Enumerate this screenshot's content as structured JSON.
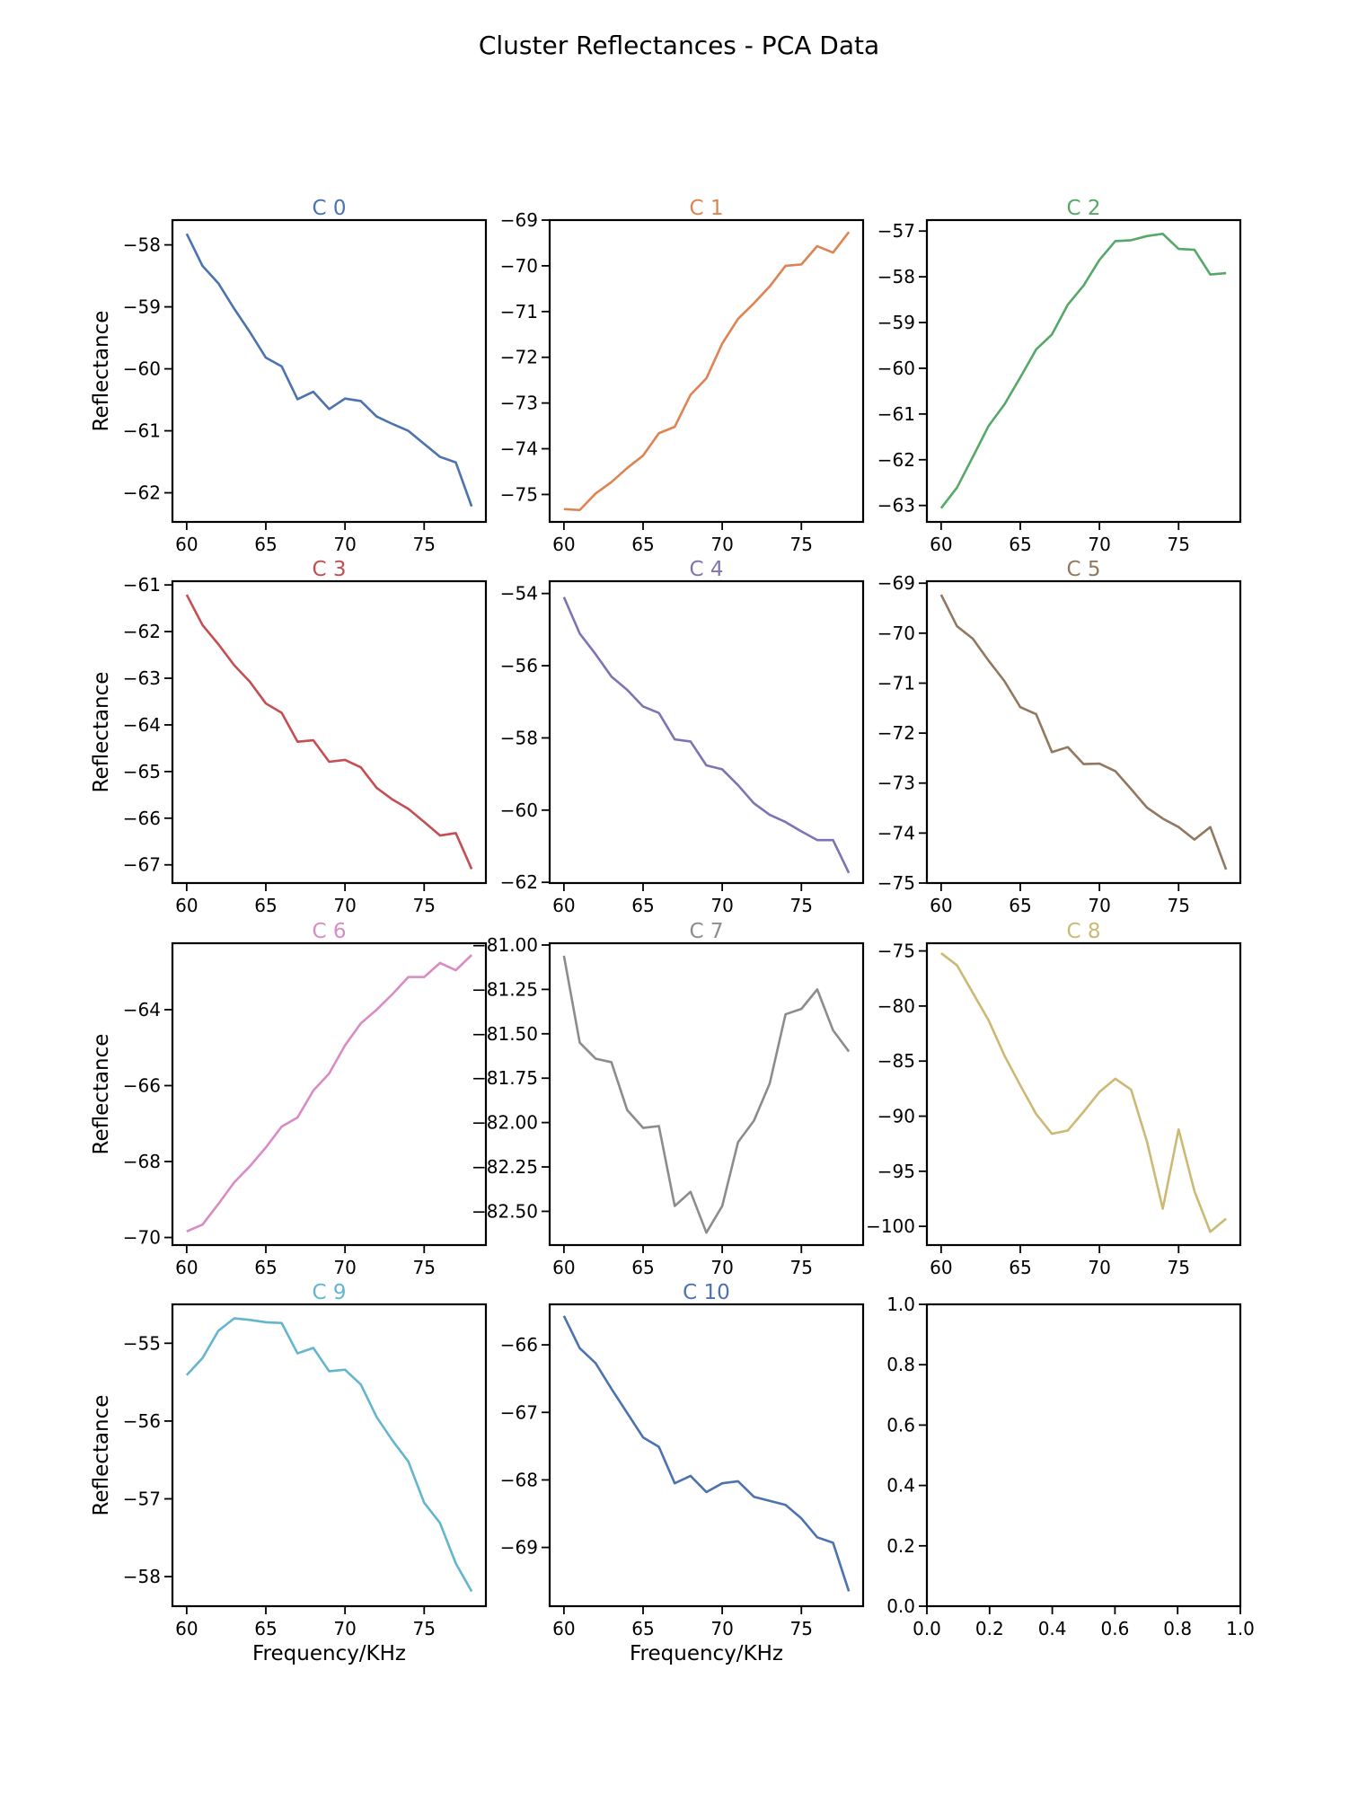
{
  "figure": {
    "title": "Cluster Reflectances - PCA Data"
  },
  "chart_data": [
    {
      "type": "line",
      "title": "C 0",
      "color": "#4c72b0",
      "xlabel": "",
      "ylabel": "Reflectance",
      "xlim": [
        59.1,
        78.9
      ],
      "ylim": [
        -62.47,
        -57.6
      ],
      "xticks": [
        60,
        65,
        70,
        75
      ],
      "yticks": [
        -58,
        -59,
        -60,
        -61,
        -62
      ],
      "x": [
        60,
        61,
        62,
        63,
        64,
        65,
        66,
        67,
        68,
        69,
        70,
        71,
        72,
        73,
        74,
        75,
        76,
        77,
        78
      ],
      "values": [
        -57.82,
        -58.34,
        -58.62,
        -59.03,
        -59.41,
        -59.82,
        -59.96,
        -60.49,
        -60.37,
        -60.65,
        -60.48,
        -60.52,
        -60.77,
        -60.89,
        -61.0,
        -61.21,
        -61.42,
        -61.51,
        -62.22
      ]
    },
    {
      "type": "line",
      "title": "C 1",
      "color": "#dd8452",
      "xlabel": "",
      "ylabel": "",
      "xlim": [
        59.1,
        78.9
      ],
      "ylim": [
        -75.6,
        -69.0
      ],
      "xticks": [
        60,
        65,
        70,
        75
      ],
      "yticks": [
        -69,
        -70,
        -71,
        -72,
        -73,
        -74,
        -75
      ],
      "x": [
        60,
        61,
        62,
        63,
        64,
        65,
        66,
        67,
        68,
        69,
        70,
        71,
        72,
        73,
        74,
        75,
        76,
        77,
        78
      ],
      "values": [
        -75.32,
        -75.34,
        -74.98,
        -74.73,
        -74.42,
        -74.15,
        -73.66,
        -73.52,
        -72.82,
        -72.46,
        -71.7,
        -71.16,
        -70.82,
        -70.45,
        -70.0,
        -69.97,
        -69.57,
        -69.71,
        -69.26
      ]
    },
    {
      "type": "line",
      "title": "C 2",
      "color": "#55a868",
      "xlabel": "",
      "ylabel": "",
      "xlim": [
        59.1,
        78.9
      ],
      "ylim": [
        -63.36,
        -56.76
      ],
      "xticks": [
        60,
        65,
        70,
        75
      ],
      "yticks": [
        -57,
        -58,
        -59,
        -60,
        -61,
        -62,
        -63
      ],
      "x": [
        60,
        61,
        62,
        63,
        64,
        65,
        66,
        67,
        68,
        69,
        70,
        71,
        72,
        73,
        74,
        75,
        76,
        77,
        78
      ],
      "values": [
        -63.06,
        -62.61,
        -61.94,
        -61.26,
        -60.79,
        -60.2,
        -59.59,
        -59.26,
        -58.61,
        -58.19,
        -57.63,
        -57.22,
        -57.2,
        -57.11,
        -57.06,
        -57.39,
        -57.41,
        -57.95,
        -57.92
      ]
    },
    {
      "type": "line",
      "title": "C 3",
      "color": "#c44e52",
      "xlabel": "",
      "ylabel": "Reflectance",
      "xlim": [
        59.1,
        78.9
      ],
      "ylim": [
        -67.39,
        -60.92
      ],
      "xticks": [
        60,
        65,
        70,
        75
      ],
      "yticks": [
        -61,
        -62,
        -63,
        -64,
        -65,
        -66,
        -67
      ],
      "x": [
        60,
        61,
        62,
        63,
        64,
        65,
        66,
        67,
        68,
        69,
        70,
        71,
        72,
        73,
        74,
        75,
        76,
        77,
        78
      ],
      "values": [
        -61.21,
        -61.86,
        -62.27,
        -62.72,
        -63.08,
        -63.54,
        -63.74,
        -64.36,
        -64.33,
        -64.79,
        -64.75,
        -64.91,
        -65.35,
        -65.6,
        -65.8,
        -66.08,
        -66.37,
        -66.32,
        -67.09
      ]
    },
    {
      "type": "line",
      "title": "C 4",
      "color": "#8172b3",
      "xlabel": "",
      "ylabel": "",
      "xlim": [
        59.1,
        78.9
      ],
      "ylim": [
        -62.02,
        -53.66
      ],
      "xticks": [
        60,
        65,
        70,
        75
      ],
      "yticks": [
        -54,
        -56,
        -58,
        -60,
        -62
      ],
      "x": [
        60,
        61,
        62,
        63,
        64,
        65,
        66,
        67,
        68,
        69,
        70,
        71,
        72,
        73,
        74,
        75,
        76,
        77,
        78
      ],
      "values": [
        -54.1,
        -55.11,
        -55.68,
        -56.3,
        -56.67,
        -57.13,
        -57.31,
        -58.04,
        -58.1,
        -58.76,
        -58.87,
        -59.31,
        -59.81,
        -60.13,
        -60.33,
        -60.59,
        -60.83,
        -60.83,
        -61.74
      ]
    },
    {
      "type": "line",
      "title": "C 5",
      "color": "#937860",
      "xlabel": "",
      "ylabel": "",
      "xlim": [
        59.1,
        78.9
      ],
      "ylim": [
        -75.0,
        -68.96
      ],
      "xticks": [
        60,
        65,
        70,
        75
      ],
      "yticks": [
        -69,
        -70,
        -71,
        -72,
        -73,
        -74,
        -75
      ],
      "x": [
        60,
        61,
        62,
        63,
        64,
        65,
        66,
        67,
        68,
        69,
        70,
        71,
        72,
        73,
        74,
        75,
        76,
        77,
        78
      ],
      "values": [
        -69.23,
        -69.86,
        -70.11,
        -70.55,
        -70.96,
        -71.48,
        -71.62,
        -72.38,
        -72.28,
        -72.62,
        -72.61,
        -72.76,
        -73.12,
        -73.49,
        -73.71,
        -73.88,
        -74.13,
        -73.88,
        -74.73
      ]
    },
    {
      "type": "line",
      "title": "C 6",
      "color": "#da8bc3",
      "xlabel": "",
      "ylabel": "Reflectance",
      "xlim": [
        59.1,
        78.9
      ],
      "ylim": [
        -70.2,
        -62.25
      ],
      "xticks": [
        60,
        65,
        70,
        75
      ],
      "yticks": [
        -64,
        -66,
        -68,
        -70
      ],
      "x": [
        60,
        61,
        62,
        63,
        64,
        65,
        66,
        67,
        68,
        69,
        70,
        71,
        72,
        73,
        74,
        75,
        76,
        77,
        78
      ],
      "values": [
        -69.84,
        -69.66,
        -69.12,
        -68.55,
        -68.12,
        -67.63,
        -67.08,
        -66.84,
        -66.13,
        -65.68,
        -64.94,
        -64.36,
        -64.0,
        -63.59,
        -63.14,
        -63.14,
        -62.77,
        -62.96,
        -62.56
      ]
    },
    {
      "type": "line",
      "title": "C 7",
      "color": "#8c8c8c",
      "xlabel": "",
      "ylabel": "",
      "xlim": [
        59.1,
        78.9
      ],
      "ylim": [
        -82.69,
        -80.99
      ],
      "xticks": [
        60,
        65,
        70,
        75
      ],
      "yticks": [
        -81.0,
        -81.25,
        -81.5,
        -81.75,
        -82.0,
        -82.25,
        -82.5
      ],
      "x": [
        60,
        61,
        62,
        63,
        64,
        65,
        66,
        67,
        68,
        69,
        70,
        71,
        72,
        73,
        74,
        75,
        76,
        77,
        78
      ],
      "values": [
        -81.06,
        -81.55,
        -81.64,
        -81.66,
        -81.93,
        -82.03,
        -82.02,
        -82.47,
        -82.39,
        -82.62,
        -82.47,
        -82.11,
        -81.99,
        -81.78,
        -81.39,
        -81.36,
        -81.25,
        -81.48,
        -81.6
      ]
    },
    {
      "type": "line",
      "title": "C 8",
      "color": "#ccb974",
      "xlabel": "",
      "ylabel": "",
      "xlim": [
        59.1,
        78.9
      ],
      "ylim": [
        -101.7,
        -74.3
      ],
      "xticks": [
        60,
        65,
        70,
        75
      ],
      "yticks": [
        -75,
        -80,
        -85,
        -90,
        -95,
        -100
      ],
      "x": [
        60,
        61,
        62,
        63,
        64,
        65,
        66,
        67,
        68,
        69,
        70,
        71,
        72,
        73,
        74,
        75,
        76,
        77,
        78
      ],
      "values": [
        -75.2,
        -76.3,
        -78.8,
        -81.3,
        -84.5,
        -87.2,
        -89.8,
        -91.6,
        -91.3,
        -89.6,
        -87.8,
        -86.6,
        -87.6,
        -92.3,
        -98.4,
        -91.2,
        -96.8,
        -100.5,
        -99.3
      ]
    },
    {
      "type": "line",
      "title": "C 9",
      "color": "#64b5cd",
      "xlabel": "Frequency/KHz",
      "ylabel": "Reflectance",
      "xlim": [
        59.1,
        78.9
      ],
      "ylim": [
        -58.38,
        -54.5
      ],
      "xticks": [
        60,
        65,
        70,
        75
      ],
      "yticks": [
        -55,
        -56,
        -57,
        -58
      ],
      "x": [
        60,
        61,
        62,
        63,
        64,
        65,
        66,
        67,
        68,
        69,
        70,
        71,
        72,
        73,
        74,
        75,
        76,
        77,
        78
      ],
      "values": [
        -55.41,
        -55.19,
        -54.84,
        -54.68,
        -54.7,
        -54.73,
        -54.74,
        -55.13,
        -55.06,
        -55.36,
        -55.34,
        -55.53,
        -55.95,
        -56.25,
        -56.52,
        -57.05,
        -57.31,
        -57.83,
        -58.19
      ]
    },
    {
      "type": "line",
      "title": "C 10",
      "color": "#4c72b0",
      "xlabel": "Frequency/KHz",
      "ylabel": "",
      "xlim": [
        59.1,
        78.9
      ],
      "ylim": [
        -69.87,
        -65.4
      ],
      "xticks": [
        60,
        65,
        70,
        75
      ],
      "yticks": [
        -66,
        -67,
        -68,
        -69
      ],
      "x": [
        60,
        61,
        62,
        63,
        64,
        65,
        66,
        67,
        68,
        69,
        70,
        71,
        72,
        73,
        74,
        75,
        76,
        77,
        78
      ],
      "values": [
        -65.57,
        -66.05,
        -66.27,
        -66.65,
        -67.01,
        -67.37,
        -67.51,
        -68.05,
        -67.94,
        -68.18,
        -68.05,
        -68.02,
        -68.25,
        -68.31,
        -68.37,
        -68.57,
        -68.85,
        -68.93,
        -69.65
      ]
    },
    {
      "type": "line",
      "title": "",
      "color": "",
      "xlabel": "",
      "ylabel": "",
      "xlim": [
        0,
        1
      ],
      "ylim": [
        0,
        1
      ],
      "xticks": [
        0.0,
        0.2,
        0.4,
        0.6,
        0.8,
        1.0
      ],
      "yticks": [
        0.0,
        0.2,
        0.4,
        0.6,
        0.8,
        1.0
      ],
      "x": [],
      "values": []
    }
  ]
}
